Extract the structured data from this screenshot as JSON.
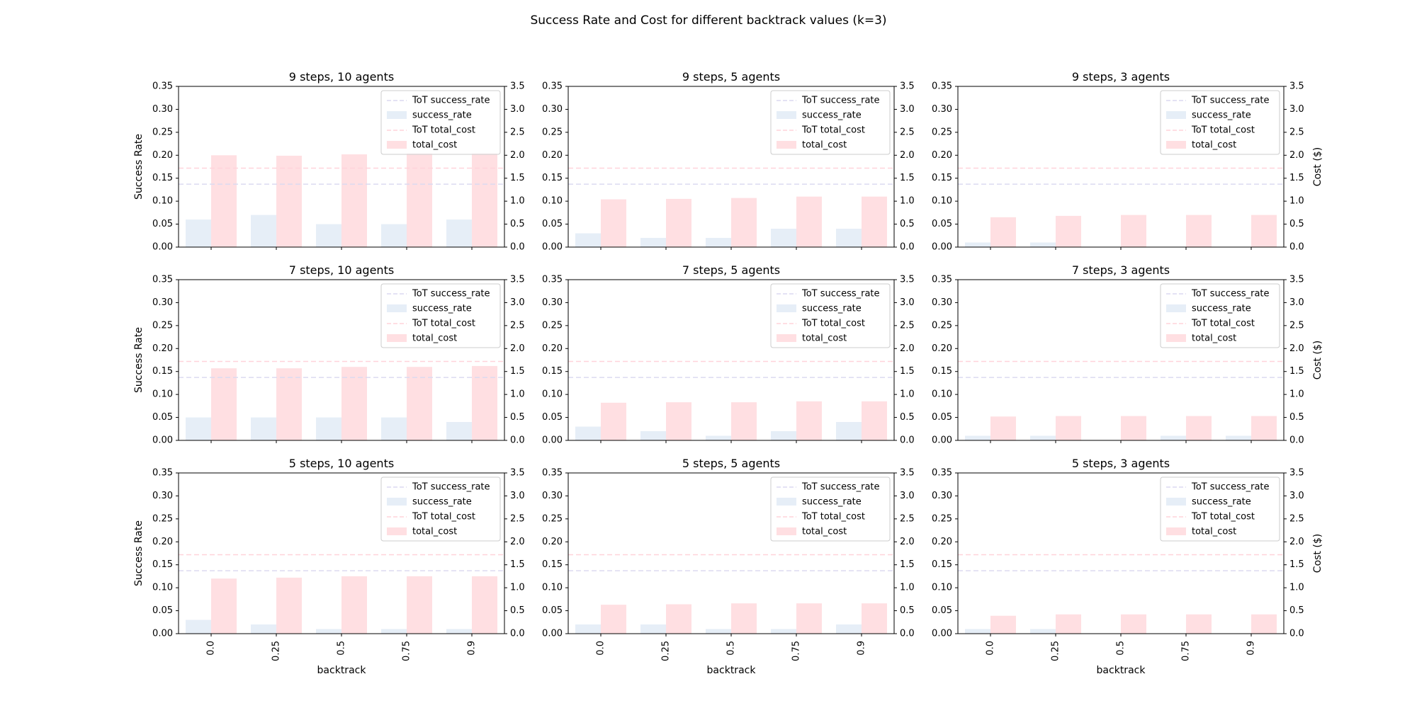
{
  "figure": {
    "suptitle": "Success Rate and Cost for different backtrack values (k=3)",
    "left_ylabel": "Success Rate",
    "right_ylabel": "Cost ($)",
    "xlabel": "backtrack",
    "left_ticks": [
      "0.00",
      "0.05",
      "0.10",
      "0.15",
      "0.20",
      "0.25",
      "0.30",
      "0.35"
    ],
    "right_ticks": [
      "0.0",
      "0.5",
      "1.0",
      "1.5",
      "2.0",
      "2.5",
      "3.0",
      "3.5"
    ],
    "legend": [
      "ToT success_rate",
      "success_rate",
      "ToT total_cost",
      "total_cost"
    ],
    "colors": {
      "success_bar": "#e6eef7",
      "cost_bar": "#ffdfe2",
      "tot_success_line": "#dcd9f0",
      "tot_cost_line": "#ffd3da"
    }
  },
  "chart_data": [
    {
      "type": "bar",
      "title": "9 steps, 10 agents",
      "categories": [
        "0.0",
        "0.25",
        "0.5",
        "0.75",
        "0.9"
      ],
      "series": [
        {
          "name": "success_rate",
          "axis": "left",
          "values": [
            0.06,
            0.07,
            0.05,
            0.05,
            0.06
          ]
        },
        {
          "name": "total_cost",
          "axis": "right",
          "values": [
            2.0,
            1.99,
            2.02,
            2.05,
            2.05
          ]
        }
      ],
      "reference_lines": [
        {
          "name": "ToT success_rate",
          "value": 0.137
        },
        {
          "name": "ToT total_cost",
          "value": 1.72
        }
      ],
      "ylim": [
        0,
        0.35
      ],
      "y2lim": [
        0,
        3.5
      ],
      "legend_position": "upper right"
    },
    {
      "type": "bar",
      "title": "9 steps, 5 agents",
      "categories": [
        "0.0",
        "0.25",
        "0.5",
        "0.75",
        "0.9"
      ],
      "series": [
        {
          "name": "success_rate",
          "axis": "left",
          "values": [
            0.03,
            0.02,
            0.02,
            0.04,
            0.04
          ]
        },
        {
          "name": "total_cost",
          "axis": "right",
          "values": [
            1.04,
            1.05,
            1.07,
            1.1,
            1.1
          ]
        }
      ],
      "reference_lines": [
        {
          "name": "ToT success_rate",
          "value": 0.137
        },
        {
          "name": "ToT total_cost",
          "value": 1.72
        }
      ],
      "ylim": [
        0,
        0.35
      ],
      "y2lim": [
        0,
        3.5
      ],
      "legend_position": "upper right"
    },
    {
      "type": "bar",
      "title": "9 steps, 3 agents",
      "categories": [
        "0.0",
        "0.25",
        "0.5",
        "0.75",
        "0.9"
      ],
      "series": [
        {
          "name": "success_rate",
          "axis": "left",
          "values": [
            0.01,
            0.01,
            0.0,
            0.0,
            0.0
          ]
        },
        {
          "name": "total_cost",
          "axis": "right",
          "values": [
            0.65,
            0.68,
            0.7,
            0.7,
            0.7
          ]
        }
      ],
      "reference_lines": [
        {
          "name": "ToT success_rate",
          "value": 0.137
        },
        {
          "name": "ToT total_cost",
          "value": 1.72
        }
      ],
      "ylim": [
        0,
        0.35
      ],
      "y2lim": [
        0,
        3.5
      ],
      "legend_position": "upper right"
    },
    {
      "type": "bar",
      "title": "7 steps, 10 agents",
      "categories": [
        "0.0",
        "0.25",
        "0.5",
        "0.75",
        "0.9"
      ],
      "series": [
        {
          "name": "success_rate",
          "axis": "left",
          "values": [
            0.05,
            0.05,
            0.05,
            0.05,
            0.04
          ]
        },
        {
          "name": "total_cost",
          "axis": "right",
          "values": [
            1.57,
            1.57,
            1.6,
            1.6,
            1.62
          ]
        }
      ],
      "reference_lines": [
        {
          "name": "ToT success_rate",
          "value": 0.137
        },
        {
          "name": "ToT total_cost",
          "value": 1.72
        }
      ],
      "ylim": [
        0,
        0.35
      ],
      "y2lim": [
        0,
        3.5
      ],
      "legend_position": "upper right"
    },
    {
      "type": "bar",
      "title": "7 steps, 5 agents",
      "categories": [
        "0.0",
        "0.25",
        "0.5",
        "0.75",
        "0.9"
      ],
      "series": [
        {
          "name": "success_rate",
          "axis": "left",
          "values": [
            0.03,
            0.02,
            0.01,
            0.02,
            0.04
          ]
        },
        {
          "name": "total_cost",
          "axis": "right",
          "values": [
            0.82,
            0.83,
            0.83,
            0.85,
            0.85
          ]
        }
      ],
      "reference_lines": [
        {
          "name": "ToT success_rate",
          "value": 0.137
        },
        {
          "name": "ToT total_cost",
          "value": 1.72
        }
      ],
      "ylim": [
        0,
        0.35
      ],
      "y2lim": [
        0,
        3.5
      ],
      "legend_position": "upper right"
    },
    {
      "type": "bar",
      "title": "7 steps, 3 agents",
      "categories": [
        "0.0",
        "0.25",
        "0.5",
        "0.75",
        "0.9"
      ],
      "series": [
        {
          "name": "success_rate",
          "axis": "left",
          "values": [
            0.01,
            0.01,
            0.0,
            0.01,
            0.01
          ]
        },
        {
          "name": "total_cost",
          "axis": "right",
          "values": [
            0.52,
            0.53,
            0.53,
            0.53,
            0.53
          ]
        }
      ],
      "reference_lines": [
        {
          "name": "ToT success_rate",
          "value": 0.137
        },
        {
          "name": "ToT total_cost",
          "value": 1.72
        }
      ],
      "ylim": [
        0,
        0.35
      ],
      "y2lim": [
        0,
        3.5
      ],
      "legend_position": "upper right"
    },
    {
      "type": "bar",
      "title": "5 steps, 10 agents",
      "categories": [
        "0.0",
        "0.25",
        "0.5",
        "0.75",
        "0.9"
      ],
      "series": [
        {
          "name": "success_rate",
          "axis": "left",
          "values": [
            0.03,
            0.02,
            0.01,
            0.01,
            0.01
          ]
        },
        {
          "name": "total_cost",
          "axis": "right",
          "values": [
            1.2,
            1.22,
            1.25,
            1.25,
            1.25
          ]
        }
      ],
      "reference_lines": [
        {
          "name": "ToT success_rate",
          "value": 0.137
        },
        {
          "name": "ToT total_cost",
          "value": 1.72
        }
      ],
      "ylim": [
        0,
        0.35
      ],
      "y2lim": [
        0,
        3.5
      ],
      "legend_position": "upper right"
    },
    {
      "type": "bar",
      "title": "5 steps, 5 agents",
      "categories": [
        "0.0",
        "0.25",
        "0.5",
        "0.75",
        "0.9"
      ],
      "series": [
        {
          "name": "success_rate",
          "axis": "left",
          "values": [
            0.02,
            0.02,
            0.01,
            0.01,
            0.02
          ]
        },
        {
          "name": "total_cost",
          "axis": "right",
          "values": [
            0.63,
            0.64,
            0.66,
            0.66,
            0.66
          ]
        }
      ],
      "reference_lines": [
        {
          "name": "ToT success_rate",
          "value": 0.137
        },
        {
          "name": "ToT total_cost",
          "value": 1.72
        }
      ],
      "ylim": [
        0,
        0.35
      ],
      "y2lim": [
        0,
        3.5
      ],
      "legend_position": "upper right"
    },
    {
      "type": "bar",
      "title": "5 steps, 3 agents",
      "categories": [
        "0.0",
        "0.25",
        "0.5",
        "0.75",
        "0.9"
      ],
      "series": [
        {
          "name": "success_rate",
          "axis": "left",
          "values": [
            0.01,
            0.01,
            0.0,
            0.0,
            0.0
          ]
        },
        {
          "name": "total_cost",
          "axis": "right",
          "values": [
            0.39,
            0.42,
            0.42,
            0.42,
            0.42
          ]
        }
      ],
      "reference_lines": [
        {
          "name": "ToT success_rate",
          "value": 0.137
        },
        {
          "name": "ToT total_cost",
          "value": 1.72
        }
      ],
      "ylim": [
        0,
        0.35
      ],
      "y2lim": [
        0,
        3.5
      ],
      "legend_position": "upper right"
    }
  ]
}
